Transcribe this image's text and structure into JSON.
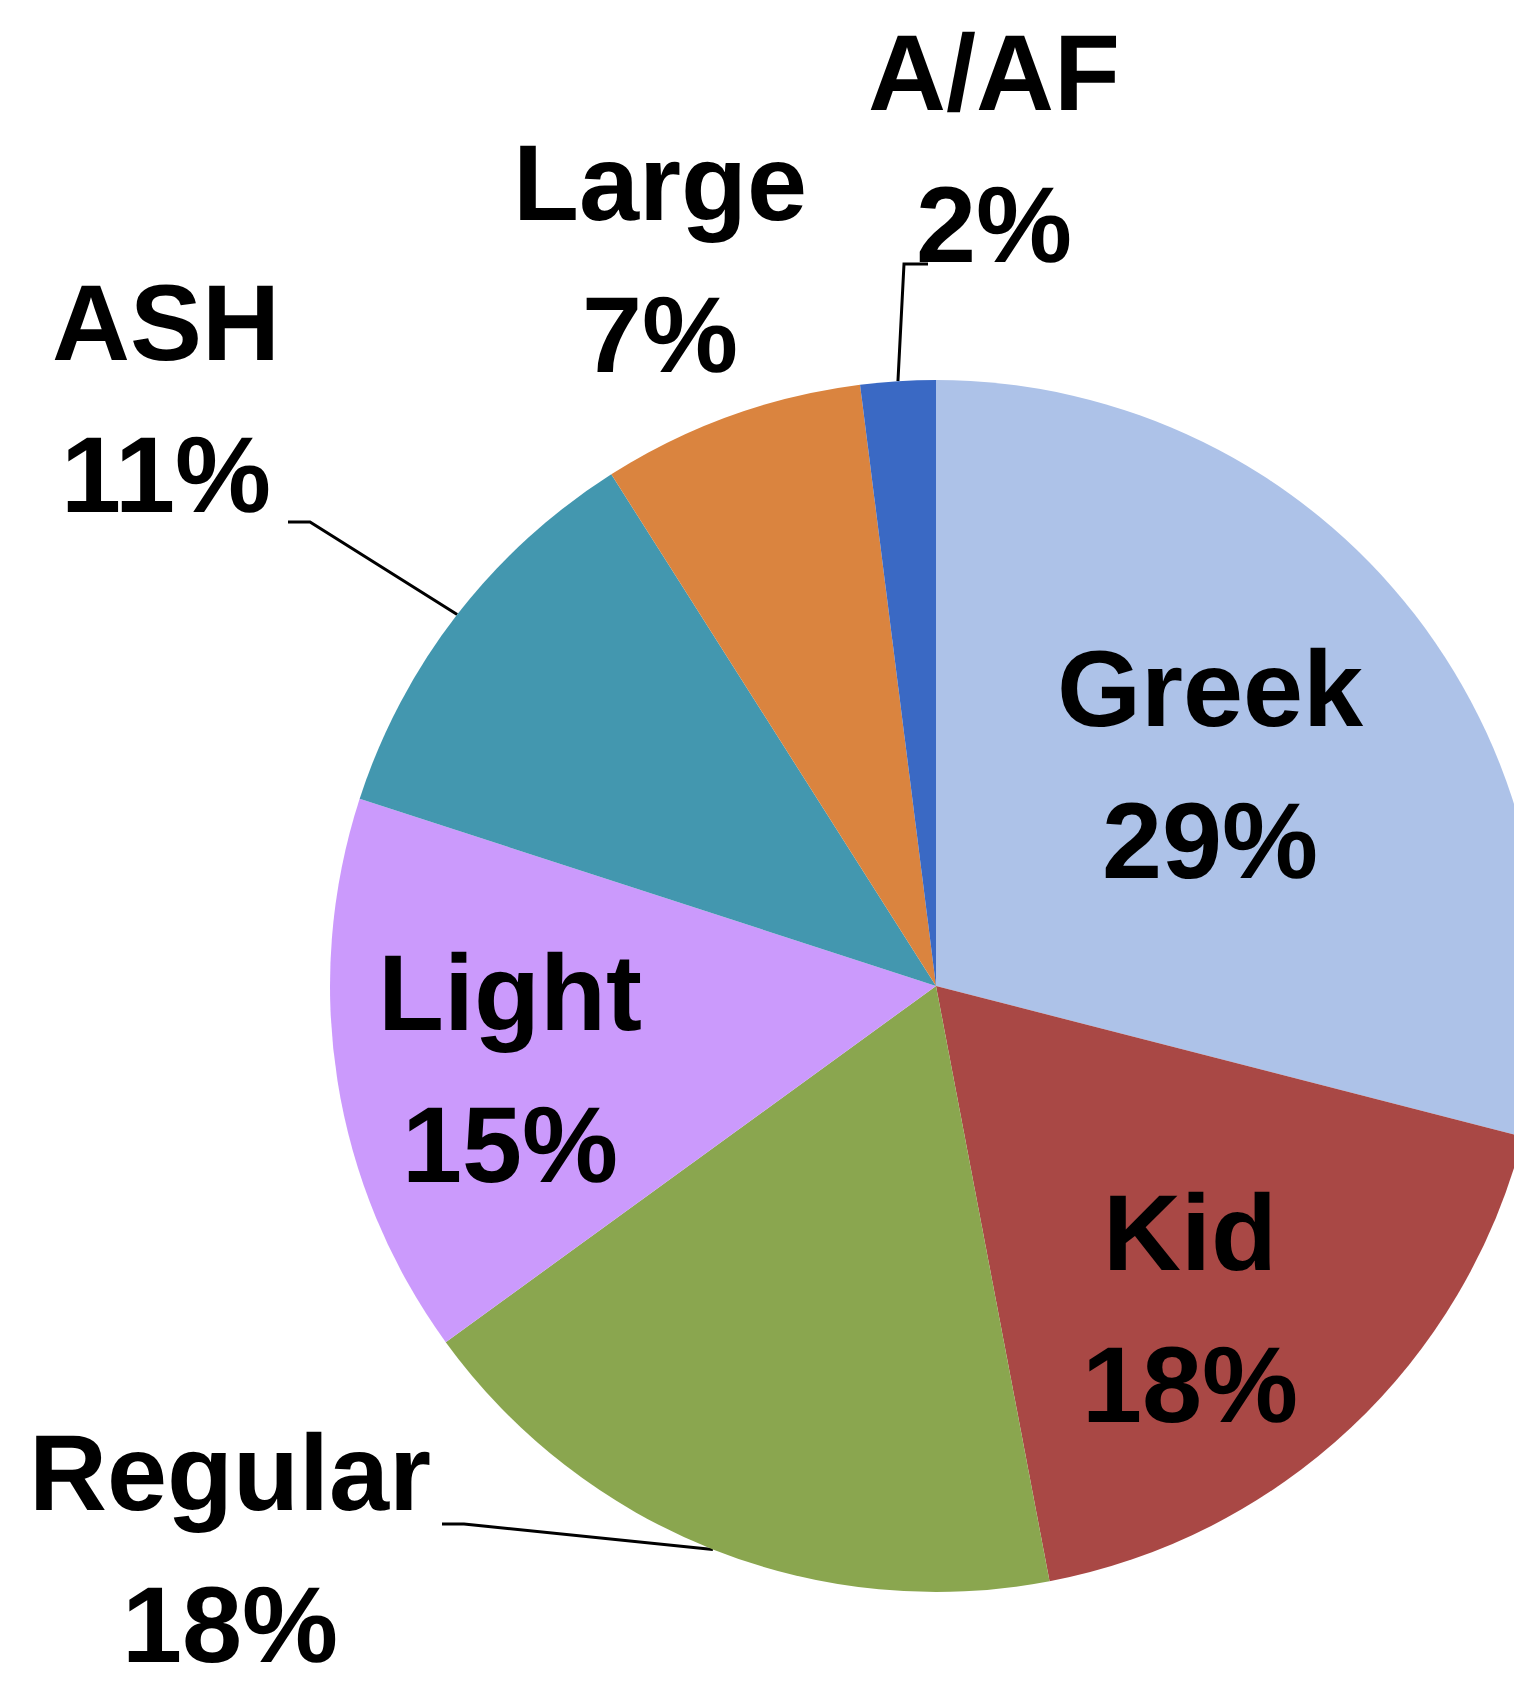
{
  "chart_data": {
    "type": "pie",
    "categories": [
      "Greek",
      "Kid",
      "Regular",
      "Light",
      "ASH",
      "Large",
      "A/AF"
    ],
    "values": [
      29,
      18,
      18,
      15,
      11,
      7,
      2
    ],
    "colors": [
      "#adc2e8",
      "#a94845",
      "#8aa64f",
      "#cb9afc",
      "#4397af",
      "#da843f",
      "#3a69c4"
    ],
    "value_labels": [
      "29%",
      "18%",
      "18%",
      "15%",
      "11%",
      "7%",
      "2%"
    ]
  }
}
